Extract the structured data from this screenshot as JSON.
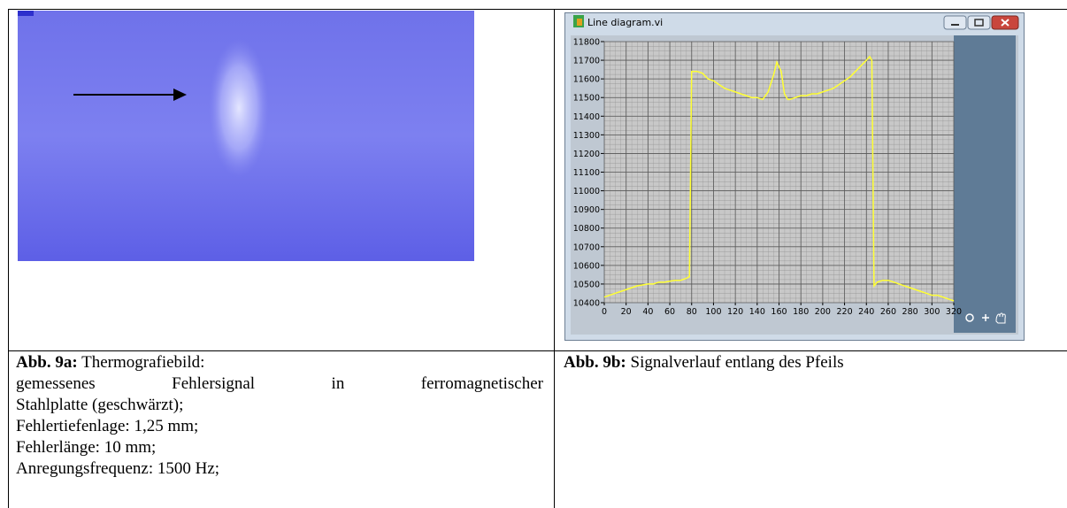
{
  "window": {
    "title": "Line diagram.vi",
    "chart": {
      "type": "line",
      "color": "#ffff33",
      "x": [
        0,
        5,
        10,
        15,
        20,
        25,
        30,
        35,
        40,
        45,
        50,
        55,
        60,
        65,
        70,
        75,
        78,
        80,
        85,
        90,
        95,
        100,
        105,
        110,
        115,
        120,
        125,
        130,
        135,
        140,
        145,
        150,
        155,
        158,
        162,
        165,
        168,
        170,
        175,
        180,
        185,
        190,
        195,
        200,
        205,
        210,
        215,
        220,
        225,
        230,
        235,
        240,
        243,
        245,
        247,
        250,
        255,
        260,
        265,
        270,
        275,
        280,
        285,
        290,
        295,
        300,
        305,
        310,
        315,
        320
      ],
      "values": [
        10430,
        10440,
        10450,
        10460,
        10470,
        10480,
        10490,
        10495,
        10500,
        10500,
        10510,
        10510,
        10515,
        10520,
        10520,
        10530,
        10540,
        11640,
        11640,
        11630,
        11600,
        11590,
        11570,
        11550,
        11540,
        11530,
        11520,
        11510,
        11500,
        11500,
        11490,
        11530,
        11620,
        11690,
        11640,
        11520,
        11490,
        11490,
        11500,
        11510,
        11510,
        11520,
        11520,
        11530,
        11540,
        11550,
        11570,
        11590,
        11610,
        11640,
        11670,
        11700,
        11720,
        11700,
        10490,
        10510,
        10520,
        10520,
        10510,
        10500,
        10490,
        10480,
        10470,
        10460,
        10450,
        10440,
        10440,
        10430,
        10420,
        10410
      ],
      "xlim": [
        0,
        320
      ],
      "ylim": [
        10400,
        11800
      ],
      "xticks": [
        0,
        20,
        40,
        60,
        80,
        100,
        120,
        140,
        160,
        180,
        200,
        220,
        240,
        260,
        280,
        300,
        320
      ],
      "yticks": [
        10400,
        10500,
        10600,
        10700,
        10800,
        10900,
        11000,
        11100,
        11200,
        11300,
        11400,
        11500,
        11600,
        11700,
        11800
      ],
      "grid": true
    }
  },
  "captions": [
    {
      "label": "Abb. 9a:",
      "lines": [
        "Thermografiebild:",
        "gemessenes Fehlersignal in ferromagnetischer",
        "Stahlplatte (geschwärzt);",
        "Fehlertiefenlage: 1,25 mm;",
        "Fehlerlänge: 10 mm;",
        "Anregungsfrequenz: 1500 Hz;"
      ]
    },
    {
      "label": "Abb. 9b:",
      "lines": [
        "Signalverlauf entlang des Pfeils"
      ]
    }
  ]
}
